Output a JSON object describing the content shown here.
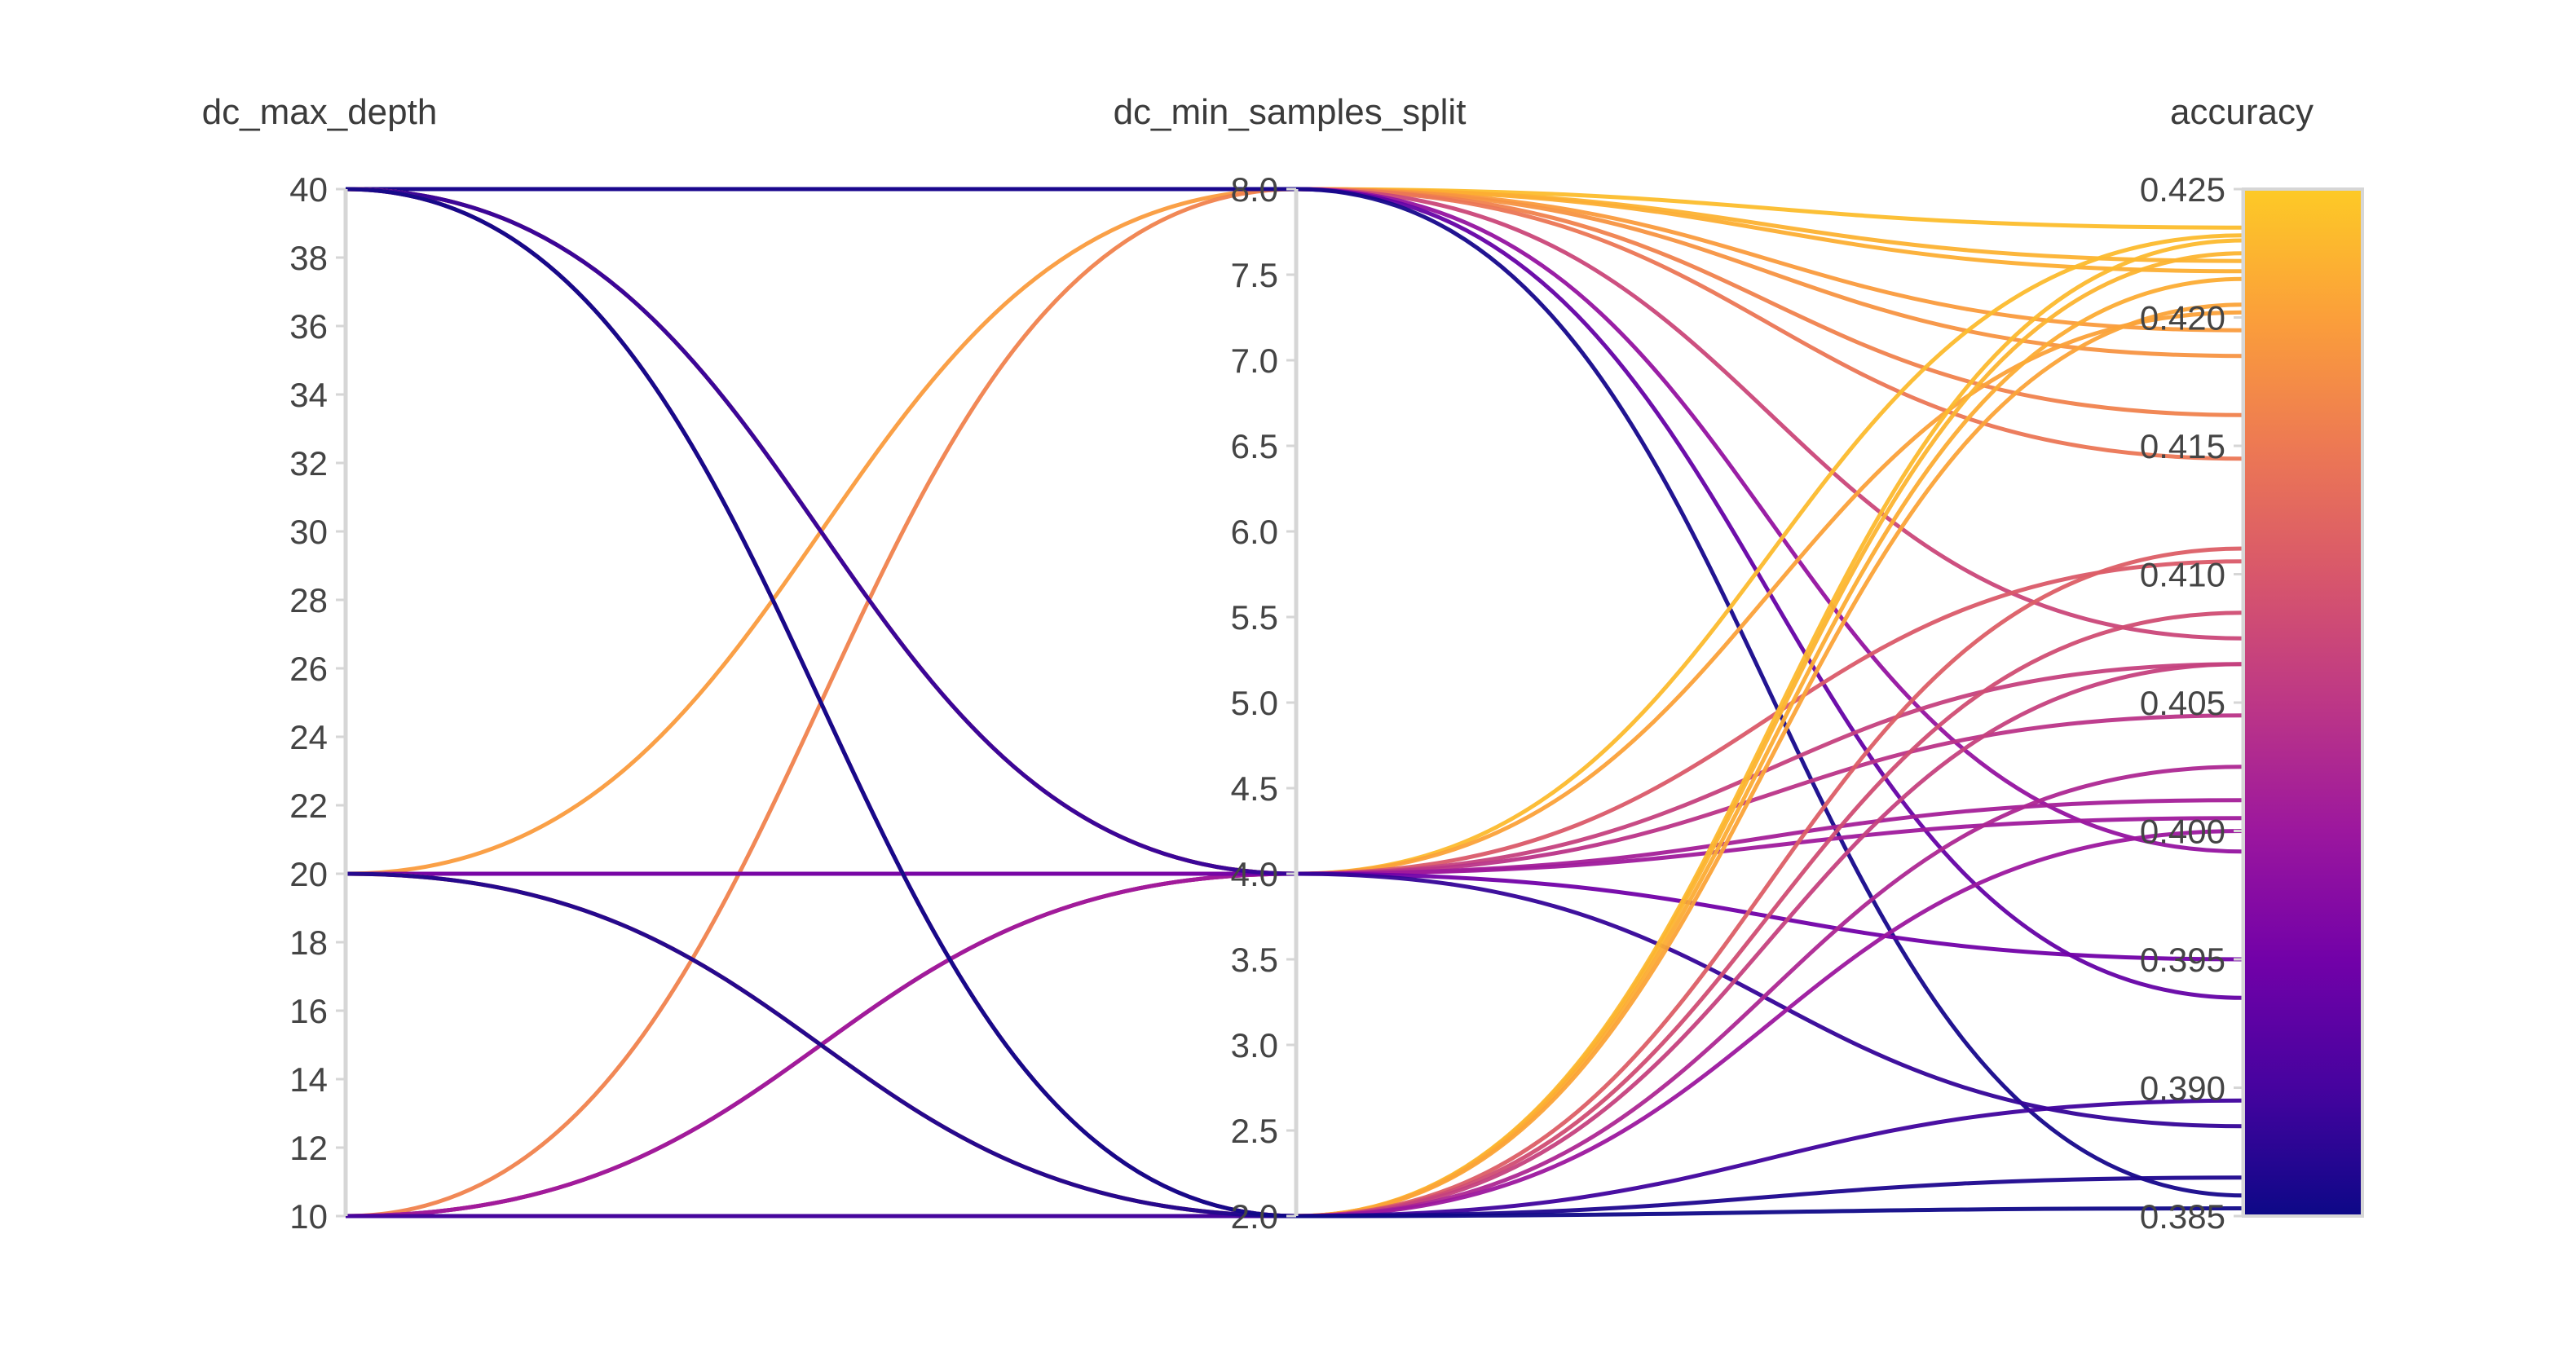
{
  "chart_data": {
    "type": "parallel_coordinates",
    "title": "",
    "axes": [
      {
        "key": "dc_max_depth",
        "label": "dc_max_depth",
        "range": [
          10,
          40
        ],
        "ticks": [
          "10",
          "12",
          "14",
          "16",
          "18",
          "20",
          "22",
          "24",
          "26",
          "28",
          "30",
          "32",
          "34",
          "36",
          "38",
          "40"
        ]
      },
      {
        "key": "dc_min_samples_split",
        "label": "dc_min_samples_split",
        "range": [
          2,
          8
        ],
        "ticks": [
          "2.0",
          "2.5",
          "3.0",
          "3.5",
          "4.0",
          "4.5",
          "5.0",
          "5.5",
          "6.0",
          "6.5",
          "7.0",
          "7.5",
          "8.0"
        ]
      },
      {
        "key": "accuracy",
        "label": "accuracy",
        "range": [
          0.385,
          0.425
        ],
        "ticks": [
          "0.385",
          "0.390",
          "0.395",
          "0.400",
          "0.405",
          "0.410",
          "0.415",
          "0.420",
          "0.425"
        ]
      }
    ],
    "colorscale": {
      "name": "plasma",
      "stops": [
        "#0d0887",
        "#46039f",
        "#7201a8",
        "#9c179e",
        "#bd3786",
        "#d8576b",
        "#ed7953",
        "#fb9f3a",
        "#fdca26"
      ]
    },
    "runs": [
      {
        "dc_max_depth": 40,
        "dc_min_samples_split": 8,
        "accuracy": 0.4235
      },
      {
        "dc_max_depth": 40,
        "dc_min_samples_split": 8,
        "accuracy": 0.4222
      },
      {
        "dc_max_depth": 40,
        "dc_min_samples_split": 8,
        "accuracy": 0.4218
      },
      {
        "dc_max_depth": 20,
        "dc_min_samples_split": 8,
        "accuracy": 0.4195
      },
      {
        "dc_max_depth": 40,
        "dc_min_samples_split": 8,
        "accuracy": 0.4185
      },
      {
        "dc_max_depth": 10,
        "dc_min_samples_split": 8,
        "accuracy": 0.4162
      },
      {
        "dc_max_depth": 40,
        "dc_min_samples_split": 8,
        "accuracy": 0.4145
      },
      {
        "dc_max_depth": 40,
        "dc_min_samples_split": 8,
        "accuracy": 0.4075
      },
      {
        "dc_max_depth": 40,
        "dc_min_samples_split": 8,
        "accuracy": 0.3992
      },
      {
        "dc_max_depth": 40,
        "dc_min_samples_split": 8,
        "accuracy": 0.3935
      },
      {
        "dc_max_depth": 40,
        "dc_min_samples_split": 8,
        "accuracy": 0.3858
      },
      {
        "dc_max_depth": 40,
        "dc_min_samples_split": 4,
        "accuracy": 0.4232
      },
      {
        "dc_max_depth": 40,
        "dc_min_samples_split": 4,
        "accuracy": 0.4202
      },
      {
        "dc_max_depth": 20,
        "dc_min_samples_split": 4,
        "accuracy": 0.4105
      },
      {
        "dc_max_depth": 10,
        "dc_min_samples_split": 4,
        "accuracy": 0.4065
      },
      {
        "dc_max_depth": 10,
        "dc_min_samples_split": 4,
        "accuracy": 0.4045
      },
      {
        "dc_max_depth": 40,
        "dc_min_samples_split": 4,
        "accuracy": 0.4012
      },
      {
        "dc_max_depth": 10,
        "dc_min_samples_split": 4,
        "accuracy": 0.4005
      },
      {
        "dc_max_depth": 20,
        "dc_min_samples_split": 4,
        "accuracy": 0.395
      },
      {
        "dc_max_depth": 40,
        "dc_min_samples_split": 4,
        "accuracy": 0.3885
      },
      {
        "dc_max_depth": 10,
        "dc_min_samples_split": 2,
        "accuracy": 0.423
      },
      {
        "dc_max_depth": 10,
        "dc_min_samples_split": 2,
        "accuracy": 0.4225
      },
      {
        "dc_max_depth": 20,
        "dc_min_samples_split": 2,
        "accuracy": 0.4215
      },
      {
        "dc_max_depth": 10,
        "dc_min_samples_split": 2,
        "accuracy": 0.4205
      },
      {
        "dc_max_depth": 40,
        "dc_min_samples_split": 2,
        "accuracy": 0.411
      },
      {
        "dc_max_depth": 10,
        "dc_min_samples_split": 2,
        "accuracy": 0.4085
      },
      {
        "dc_max_depth": 20,
        "dc_min_samples_split": 2,
        "accuracy": 0.4065
      },
      {
        "dc_max_depth": 10,
        "dc_min_samples_split": 2,
        "accuracy": 0.4025
      },
      {
        "dc_max_depth": 40,
        "dc_min_samples_split": 2,
        "accuracy": 0.4
      },
      {
        "dc_max_depth": 10,
        "dc_min_samples_split": 2,
        "accuracy": 0.3895
      },
      {
        "dc_max_depth": 20,
        "dc_min_samples_split": 2,
        "accuracy": 0.3865
      },
      {
        "dc_max_depth": 40,
        "dc_min_samples_split": 2,
        "accuracy": 0.3853
      }
    ]
  }
}
